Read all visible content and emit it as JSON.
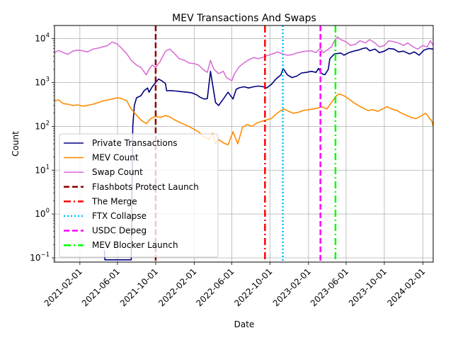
{
  "chart_data": {
    "type": "line",
    "title": "MEV Transactions And Swaps",
    "xlabel": "Date",
    "ylabel": "Count",
    "yscale": "log",
    "ylim": [
      0.08,
      20000
    ],
    "xlim": [
      "2020-11-12",
      "2024-03-05"
    ],
    "x_ticks": [
      "2021-02-01",
      "2021-06-01",
      "2021-10-01",
      "2022-02-01",
      "2022-06-01",
      "2022-10-01",
      "2023-02-01",
      "2023-06-01",
      "2023-10-01",
      "2024-02-01"
    ],
    "y_ticks": [
      {
        "base": "10",
        "exp": "−1",
        "value": 0.1
      },
      {
        "base": "10",
        "exp": "0",
        "value": 1
      },
      {
        "base": "10",
        "exp": "1",
        "value": 10
      },
      {
        "base": "10",
        "exp": "2",
        "value": 100
      },
      {
        "base": "10",
        "exp": "3",
        "value": 1000
      },
      {
        "base": "10",
        "exp": "4",
        "value": 10000
      }
    ],
    "grid": true,
    "legend_position": "lower-left",
    "series": [
      {
        "name": "Private Transactions",
        "color": "#000080",
        "points": [
          [
            "2021-04-20",
            0.15
          ],
          [
            "2021-04-22",
            0.09
          ],
          [
            "2021-07-15",
            0.09
          ],
          [
            "2021-07-20",
            100
          ],
          [
            "2021-07-25",
            300
          ],
          [
            "2021-08-01",
            450
          ],
          [
            "2021-08-15",
            500
          ],
          [
            "2021-08-25",
            650
          ],
          [
            "2021-09-05",
            750
          ],
          [
            "2021-09-10",
            600
          ],
          [
            "2021-09-20",
            800
          ],
          [
            "2021-10-01",
            1000
          ],
          [
            "2021-10-10",
            1200
          ],
          [
            "2021-10-20",
            1100
          ],
          [
            "2021-11-01",
            950
          ],
          [
            "2021-11-05",
            650
          ],
          [
            "2021-11-20",
            650
          ],
          [
            "2021-12-05",
            640
          ],
          [
            "2021-12-20",
            620
          ],
          [
            "2022-01-10",
            600
          ],
          [
            "2022-01-25",
            580
          ],
          [
            "2022-02-10",
            520
          ],
          [
            "2022-02-20",
            460
          ],
          [
            "2022-03-05",
            420
          ],
          [
            "2022-03-15",
            430
          ],
          [
            "2022-03-25",
            1800
          ],
          [
            "2022-04-02",
            800
          ],
          [
            "2022-04-10",
            350
          ],
          [
            "2022-04-20",
            300
          ],
          [
            "2022-05-05",
            420
          ],
          [
            "2022-05-20",
            600
          ],
          [
            "2022-06-05",
            420
          ],
          [
            "2022-06-15",
            700
          ],
          [
            "2022-06-25",
            760
          ],
          [
            "2022-07-10",
            800
          ],
          [
            "2022-07-25",
            750
          ],
          [
            "2022-08-10",
            800
          ],
          [
            "2022-08-25",
            830
          ],
          [
            "2022-09-10",
            800
          ],
          [
            "2022-09-20",
            750
          ],
          [
            "2022-10-05",
            900
          ],
          [
            "2022-10-20",
            1200
          ],
          [
            "2022-11-05",
            1500
          ],
          [
            "2022-11-12",
            2100
          ],
          [
            "2022-11-25",
            1500
          ],
          [
            "2022-12-10",
            1300
          ],
          [
            "2022-12-25",
            1400
          ],
          [
            "2023-01-10",
            1650
          ],
          [
            "2023-01-25",
            1700
          ],
          [
            "2023-02-10",
            1800
          ],
          [
            "2023-02-25",
            1700
          ],
          [
            "2023-03-05",
            2100
          ],
          [
            "2023-03-15",
            1600
          ],
          [
            "2023-03-25",
            1500
          ],
          [
            "2023-04-05",
            2000
          ],
          [
            "2023-04-10",
            3500
          ],
          [
            "2023-04-25",
            4500
          ],
          [
            "2023-05-15",
            4700
          ],
          [
            "2023-05-25",
            4200
          ],
          [
            "2023-06-10",
            4800
          ],
          [
            "2023-06-25",
            5200
          ],
          [
            "2023-07-10",
            5500
          ],
          [
            "2023-07-25",
            6000
          ],
          [
            "2023-08-05",
            6200
          ],
          [
            "2023-08-15",
            5300
          ],
          [
            "2023-09-01",
            5800
          ],
          [
            "2023-09-15",
            4800
          ],
          [
            "2023-10-01",
            5200
          ],
          [
            "2023-10-15",
            6000
          ],
          [
            "2023-11-01",
            5800
          ],
          [
            "2023-11-15",
            5000
          ],
          [
            "2023-12-01",
            5200
          ],
          [
            "2023-12-20",
            4500
          ],
          [
            "2024-01-05",
            5000
          ],
          [
            "2024-01-20",
            4200
          ],
          [
            "2024-02-05",
            5500
          ],
          [
            "2024-02-20",
            6000
          ],
          [
            "2024-03-05",
            5800
          ]
        ]
      },
      {
        "name": "MEV Count",
        "color": "#ff8c00",
        "points": [
          [
            "2020-11-12",
            380
          ],
          [
            "2020-11-25",
            400
          ],
          [
            "2020-12-10",
            330
          ],
          [
            "2020-12-25",
            320
          ],
          [
            "2021-01-10",
            300
          ],
          [
            "2021-01-25",
            310
          ],
          [
            "2021-02-10",
            290
          ],
          [
            "2021-02-25",
            300
          ],
          [
            "2021-03-15",
            320
          ],
          [
            "2021-04-01",
            350
          ],
          [
            "2021-04-15",
            380
          ],
          [
            "2021-05-01",
            400
          ],
          [
            "2021-05-15",
            420
          ],
          [
            "2021-06-01",
            450
          ],
          [
            "2021-06-15",
            430
          ],
          [
            "2021-07-01",
            380
          ],
          [
            "2021-07-15",
            250
          ],
          [
            "2021-08-01",
            180
          ],
          [
            "2021-08-15",
            140
          ],
          [
            "2021-09-01",
            115
          ],
          [
            "2021-09-15",
            150
          ],
          [
            "2021-10-01",
            170
          ],
          [
            "2021-10-15",
            160
          ],
          [
            "2021-11-01",
            175
          ],
          [
            "2021-11-15",
            165
          ],
          [
            "2021-12-01",
            140
          ],
          [
            "2021-12-15",
            125
          ],
          [
            "2022-01-01",
            110
          ],
          [
            "2022-01-15",
            100
          ],
          [
            "2022-02-01",
            85
          ],
          [
            "2022-02-15",
            75
          ],
          [
            "2022-03-01",
            60
          ],
          [
            "2022-03-20",
            50
          ],
          [
            "2022-04-01",
            70
          ],
          [
            "2022-04-10",
            40
          ],
          [
            "2022-04-20",
            50
          ],
          [
            "2022-05-05",
            42
          ],
          [
            "2022-05-20",
            38
          ],
          [
            "2022-06-05",
            75
          ],
          [
            "2022-06-20",
            40
          ],
          [
            "2022-07-05",
            95
          ],
          [
            "2022-07-20",
            110
          ],
          [
            "2022-08-05",
            100
          ],
          [
            "2022-08-20",
            120
          ],
          [
            "2022-09-05",
            130
          ],
          [
            "2022-09-20",
            140
          ],
          [
            "2022-10-05",
            150
          ],
          [
            "2022-10-20",
            190
          ],
          [
            "2022-11-05",
            230
          ],
          [
            "2022-11-15",
            250
          ],
          [
            "2022-11-30",
            220
          ],
          [
            "2022-12-15",
            200
          ],
          [
            "2023-01-01",
            210
          ],
          [
            "2023-01-15",
            230
          ],
          [
            "2023-02-01",
            240
          ],
          [
            "2023-02-15",
            250
          ],
          [
            "2023-03-01",
            260
          ],
          [
            "2023-03-15",
            280
          ],
          [
            "2023-04-01",
            250
          ],
          [
            "2023-04-15",
            350
          ],
          [
            "2023-05-01",
            500
          ],
          [
            "2023-05-10",
            550
          ],
          [
            "2023-05-25",
            500
          ],
          [
            "2023-06-10",
            420
          ],
          [
            "2023-06-25",
            350
          ],
          [
            "2023-07-10",
            300
          ],
          [
            "2023-07-25",
            260
          ],
          [
            "2023-08-10",
            230
          ],
          [
            "2023-08-25",
            240
          ],
          [
            "2023-09-10",
            220
          ],
          [
            "2023-09-25",
            250
          ],
          [
            "2023-10-10",
            280
          ],
          [
            "2023-10-25",
            250
          ],
          [
            "2023-11-10",
            230
          ],
          [
            "2023-11-25",
            200
          ],
          [
            "2023-12-10",
            180
          ],
          [
            "2023-12-25",
            160
          ],
          [
            "2024-01-10",
            150
          ],
          [
            "2024-01-25",
            170
          ],
          [
            "2024-02-10",
            200
          ],
          [
            "2024-02-20",
            160
          ],
          [
            "2024-03-01",
            130
          ],
          [
            "2024-03-05",
            100
          ]
        ]
      },
      {
        "name": "Swap Count",
        "color": "#da70d6",
        "points": [
          [
            "2020-11-12",
            4800
          ],
          [
            "2020-11-25",
            5400
          ],
          [
            "2020-12-10",
            4800
          ],
          [
            "2020-12-25",
            4400
          ],
          [
            "2021-01-10",
            5200
          ],
          [
            "2021-01-25",
            5500
          ],
          [
            "2021-02-10",
            5300
          ],
          [
            "2021-02-25",
            5000
          ],
          [
            "2021-03-15",
            5800
          ],
          [
            "2021-04-01",
            6100
          ],
          [
            "2021-04-15",
            6500
          ],
          [
            "2021-05-01",
            7000
          ],
          [
            "2021-05-15",
            8400
          ],
          [
            "2021-06-01",
            7500
          ],
          [
            "2021-06-15",
            6000
          ],
          [
            "2021-07-01",
            4500
          ],
          [
            "2021-07-15",
            3200
          ],
          [
            "2021-08-01",
            2500
          ],
          [
            "2021-08-15",
            2200
          ],
          [
            "2021-09-01",
            1500
          ],
          [
            "2021-09-10",
            2000
          ],
          [
            "2021-09-20",
            2500
          ],
          [
            "2021-10-01",
            2200
          ],
          [
            "2021-10-15",
            3000
          ],
          [
            "2021-11-01",
            5200
          ],
          [
            "2021-11-15",
            5800
          ],
          [
            "2021-12-01",
            4500
          ],
          [
            "2021-12-15",
            3500
          ],
          [
            "2022-01-01",
            3200
          ],
          [
            "2022-01-15",
            2800
          ],
          [
            "2022-02-01",
            2700
          ],
          [
            "2022-02-15",
            2500
          ],
          [
            "2022-03-01",
            2000
          ],
          [
            "2022-03-15",
            1700
          ],
          [
            "2022-03-25",
            3200
          ],
          [
            "2022-04-05",
            2000
          ],
          [
            "2022-04-20",
            1600
          ],
          [
            "2022-05-05",
            1800
          ],
          [
            "2022-05-15",
            1300
          ],
          [
            "2022-06-01",
            1100
          ],
          [
            "2022-06-10",
            1600
          ],
          [
            "2022-06-25",
            2300
          ],
          [
            "2022-07-10",
            2800
          ],
          [
            "2022-07-25",
            3300
          ],
          [
            "2022-08-10",
            3700
          ],
          [
            "2022-08-25",
            3500
          ],
          [
            "2022-09-10",
            3800
          ],
          [
            "2022-09-25",
            4200
          ],
          [
            "2022-10-10",
            4500
          ],
          [
            "2022-10-25",
            5000
          ],
          [
            "2022-11-10",
            4500
          ],
          [
            "2022-11-25",
            4200
          ],
          [
            "2022-12-10",
            4300
          ],
          [
            "2022-12-25",
            4700
          ],
          [
            "2023-01-10",
            5000
          ],
          [
            "2023-01-25",
            5200
          ],
          [
            "2023-02-10",
            5300
          ],
          [
            "2023-02-25",
            4800
          ],
          [
            "2023-03-10",
            6000
          ],
          [
            "2023-03-20",
            4800
          ],
          [
            "2023-04-01",
            5500
          ],
          [
            "2023-04-15",
            6500
          ],
          [
            "2023-04-25",
            9000
          ],
          [
            "2023-05-05",
            11000
          ],
          [
            "2023-05-15",
            9500
          ],
          [
            "2023-06-01",
            8500
          ],
          [
            "2023-06-15",
            7000
          ],
          [
            "2023-07-01",
            7500
          ],
          [
            "2023-07-15",
            9000
          ],
          [
            "2023-08-01",
            8000
          ],
          [
            "2023-08-15",
            9500
          ],
          [
            "2023-09-01",
            8000
          ],
          [
            "2023-09-15",
            6500
          ],
          [
            "2023-10-01",
            7000
          ],
          [
            "2023-10-15",
            9000
          ],
          [
            "2023-11-01",
            8500
          ],
          [
            "2023-11-15",
            8000
          ],
          [
            "2023-12-01",
            7000
          ],
          [
            "2023-12-15",
            8000
          ],
          [
            "2024-01-01",
            6500
          ],
          [
            "2024-01-15",
            5800
          ],
          [
            "2024-02-01",
            7000
          ],
          [
            "2024-02-15",
            6500
          ],
          [
            "2024-02-25",
            9000
          ],
          [
            "2024-03-05",
            7000
          ]
        ]
      }
    ],
    "events": [
      {
        "name": "Flashbots Protect Launch",
        "date": "2021-10-01",
        "color": "#8b0000",
        "style": "dashed"
      },
      {
        "name": "The Merge",
        "date": "2022-09-15",
        "color": "#ff0000",
        "style": "dashdot"
      },
      {
        "name": "FTX Collapse",
        "date": "2022-11-11",
        "color": "#00bfff",
        "style": "dotted"
      },
      {
        "name": "USDC Depeg",
        "date": "2023-03-11",
        "color": "#ff00ff",
        "style": "dashed"
      },
      {
        "name": "MEV Blocker Launch",
        "date": "2023-04-28",
        "color": "#00ff00",
        "style": "dashdot"
      }
    ]
  }
}
